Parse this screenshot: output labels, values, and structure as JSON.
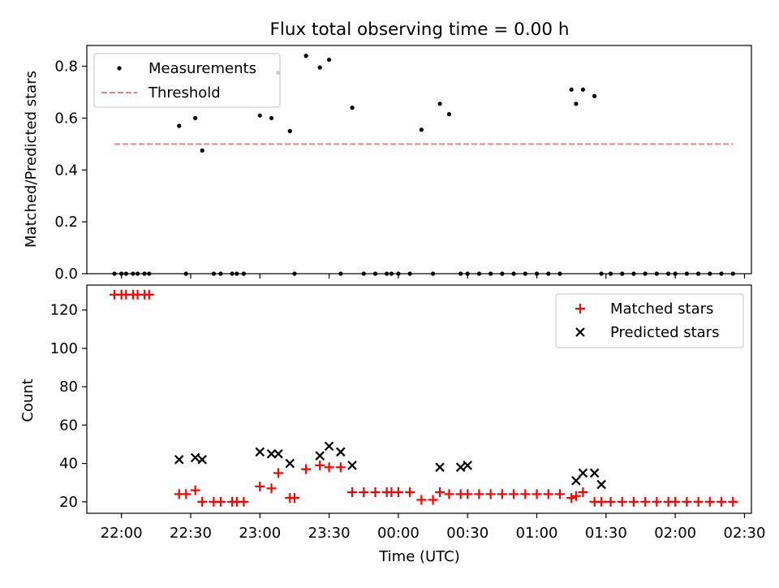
{
  "title": "Flux total observing time = 0.00 h",
  "chart_data": [
    {
      "type": "scatter",
      "ylabel": "Matched/Predicted stars",
      "ylim": [
        0,
        0.88
      ],
      "yticks": [
        0.0,
        0.2,
        0.4,
        0.6,
        0.8
      ],
      "ytick_labels": [
        "0.0",
        "0.2",
        "0.4",
        "0.6",
        "0.8"
      ],
      "legend": [
        "Measurements",
        "Threshold"
      ],
      "legend_position": "top-left",
      "threshold": {
        "value": 0.5,
        "x_start": "21:57",
        "x_end": "02:25",
        "color": "#f47f7f"
      },
      "series": [
        {
          "name": "Measurements",
          "color": "#000000",
          "x": [
            "21:57",
            "22:00",
            "22:02",
            "22:05",
            "22:07",
            "22:10",
            "22:12",
            "22:25",
            "22:28",
            "22:32",
            "22:35",
            "22:40",
            "22:43",
            "22:48",
            "22:50",
            "22:53",
            "23:00",
            "23:05",
            "23:08",
            "23:13",
            "23:15",
            "23:20",
            "23:26",
            "23:30",
            "23:35",
            "23:40",
            "23:45",
            "23:50",
            "23:55",
            "23:57",
            "00:00",
            "00:05",
            "00:10",
            "00:15",
            "00:18",
            "00:22",
            "00:27",
            "00:30",
            "00:35",
            "00:40",
            "00:45",
            "00:50",
            "00:55",
            "01:00",
            "01:05",
            "01:10",
            "01:15",
            "01:17",
            "01:20",
            "01:25",
            "01:28",
            "01:32",
            "01:37",
            "01:42",
            "01:47",
            "01:52",
            "01:57",
            "02:00",
            "02:05",
            "02:10",
            "02:15",
            "02:20",
            "02:25"
          ],
          "y": [
            0,
            0,
            0,
            0,
            0,
            0,
            0,
            0.57,
            0,
            0.6,
            0.475,
            0,
            0,
            0,
            0,
            0,
            0.61,
            0.6,
            0.775,
            0.55,
            0,
            0.84,
            0.795,
            0.825,
            0,
            0.64,
            0,
            0,
            0,
            0,
            0,
            0,
            0.555,
            0,
            0.655,
            0.615,
            0,
            0,
            0,
            0,
            0,
            0,
            0,
            0,
            0,
            0,
            0.71,
            0.655,
            0.71,
            0.685,
            0,
            0,
            0,
            0,
            0,
            0,
            0,
            0,
            0,
            0,
            0,
            0,
            0
          ]
        }
      ]
    },
    {
      "type": "scatter",
      "xlabel": "Time (UTC)",
      "ylabel": "Count",
      "ylim": [
        14,
        133
      ],
      "yticks": [
        20,
        40,
        60,
        80,
        100,
        120
      ],
      "ytick_labels": [
        "20",
        "40",
        "60",
        "80",
        "100",
        "120"
      ],
      "xlim": [
        "21:45",
        "02:33"
      ],
      "xticks": [
        "22:00",
        "22:30",
        "23:00",
        "23:30",
        "00:00",
        "00:30",
        "01:00",
        "01:30",
        "02:00",
        "02:30"
      ],
      "xtick_labels": [
        "22:00",
        "22:30",
        "23:00",
        "23:30",
        "00:00",
        "00:30",
        "01:00",
        "01:30",
        "02:00",
        "02:30"
      ],
      "legend": [
        "Matched stars",
        "Predicted stars"
      ],
      "legend_position": "top-right",
      "series": [
        {
          "name": "Matched stars",
          "marker": "+",
          "color": "#ff0000",
          "x": [
            "21:57",
            "22:00",
            "22:02",
            "22:05",
            "22:07",
            "22:10",
            "22:12",
            "22:25",
            "22:28",
            "22:32",
            "22:35",
            "22:40",
            "22:43",
            "22:48",
            "22:50",
            "22:53",
            "23:00",
            "23:05",
            "23:08",
            "23:13",
            "23:15",
            "23:20",
            "23:26",
            "23:30",
            "23:35",
            "23:40",
            "23:45",
            "23:50",
            "23:55",
            "23:57",
            "00:00",
            "00:05",
            "00:10",
            "00:15",
            "00:18",
            "00:22",
            "00:27",
            "00:30",
            "00:35",
            "00:40",
            "00:45",
            "00:50",
            "00:55",
            "01:00",
            "01:05",
            "01:10",
            "01:15",
            "01:17",
            "01:20",
            "01:25",
            "01:28",
            "01:32",
            "01:37",
            "01:42",
            "01:47",
            "01:52",
            "01:57",
            "02:00",
            "02:05",
            "02:10",
            "02:15",
            "02:20",
            "02:25"
          ],
          "y": [
            128,
            128,
            128,
            128,
            128,
            128,
            128,
            24,
            24,
            26,
            20,
            20,
            20,
            20,
            20,
            20,
            28,
            27,
            35,
            22,
            22,
            37,
            39,
            38,
            38,
            25,
            25,
            25,
            25,
            25,
            25,
            25,
            21,
            21,
            25,
            24,
            24,
            24,
            24,
            24,
            24,
            24,
            24,
            24,
            24,
            24,
            22,
            23,
            25,
            20,
            20,
            20,
            20,
            20,
            20,
            20,
            20,
            20,
            20,
            20,
            20,
            20,
            20
          ]
        },
        {
          "name": "Predicted stars",
          "marker": "x",
          "color": "#000000",
          "x": [
            "22:25",
            "22:32",
            "22:35",
            "23:00",
            "23:05",
            "23:08",
            "23:13",
            "23:26",
            "23:30",
            "23:35",
            "23:40",
            "00:18",
            "00:27",
            "00:30",
            "01:17",
            "01:20",
            "01:25",
            "01:28"
          ],
          "y": [
            42,
            43,
            42,
            46,
            45,
            45,
            40,
            44,
            49,
            46,
            39,
            38,
            38,
            39,
            31,
            35,
            35,
            29
          ]
        }
      ]
    }
  ]
}
